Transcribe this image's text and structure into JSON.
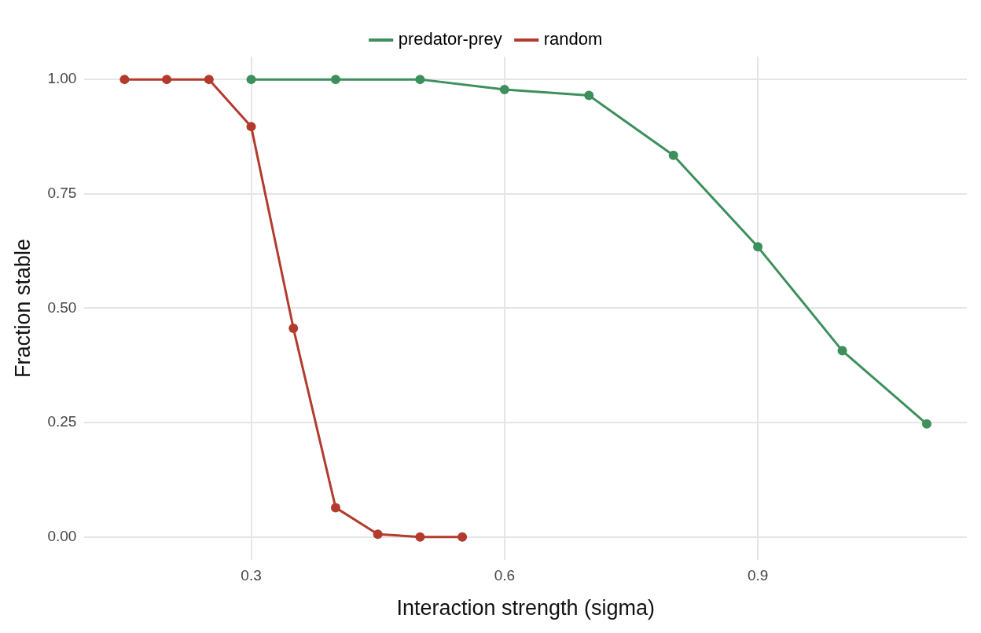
{
  "chart_data": {
    "type": "line",
    "xlabel": "Interaction strength (sigma)",
    "ylabel": "Fraction stable",
    "series": [
      {
        "name": "predator-prey",
        "color": "#3d8f5c",
        "x": [
          0.3,
          0.4,
          0.5,
          0.6,
          0.7,
          0.8,
          0.9,
          1.0,
          1.1
        ],
        "values": [
          1,
          1,
          1,
          0.978,
          0.965,
          0.834,
          0.634,
          0.407,
          0.247
        ]
      },
      {
        "name": "random",
        "color": "#b23b2e",
        "x": [
          0.15,
          0.2,
          0.25,
          0.3,
          0.35,
          0.4,
          0.45,
          0.5,
          0.55
        ],
        "values": [
          1,
          1,
          1,
          0.897,
          0.456,
          0.064,
          0.006,
          0,
          0
        ]
      }
    ],
    "xlim": [
      0.1025,
      1.1475
    ],
    "xticks": [
      0.3,
      0.6,
      0.9
    ],
    "ylim": [
      -0.05,
      1.05
    ],
    "yticks": [
      {
        "value": 0,
        "label": "0.00"
      },
      {
        "value": 0.25,
        "label": "0.25"
      },
      {
        "value": 0.5,
        "label": "0.50"
      },
      {
        "value": 0.75,
        "label": "0.75"
      },
      {
        "value": 1,
        "label": "1.00"
      }
    ],
    "grid": true,
    "legend": "top",
    "marker": "circle",
    "line_style": "solid"
  }
}
